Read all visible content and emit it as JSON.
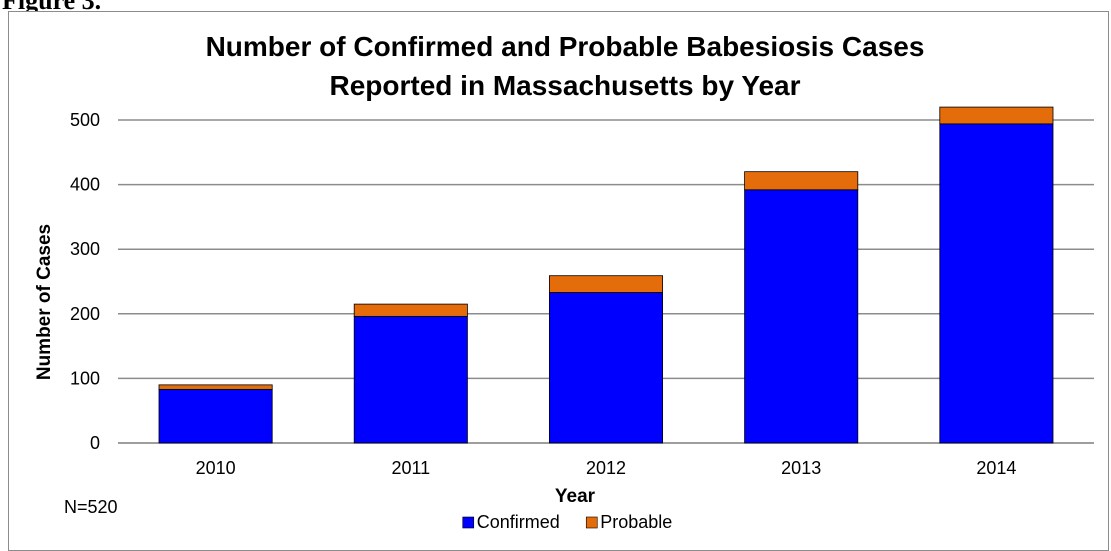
{
  "figure_label": "Figure 3.",
  "chart_data": {
    "type": "bar",
    "stacked": true,
    "title_lines": [
      "Number of Confirmed and Probable Babesiosis Cases",
      "Reported in Massachusetts by Year"
    ],
    "xlabel": "Year",
    "ylabel": "Number of Cases",
    "categories": [
      "2010",
      "2011",
      "2012",
      "2013",
      "2014"
    ],
    "series": [
      {
        "name": "Confirmed",
        "color": "#0000ff",
        "values": [
          83,
          196,
          233,
          392,
          494
        ]
      },
      {
        "name": "Probable",
        "color": "#e46c0a",
        "values": [
          7,
          19,
          26,
          28,
          26
        ]
      }
    ],
    "ylim": [
      0,
      500
    ],
    "yticks": [
      0,
      100,
      200,
      300,
      400,
      500
    ],
    "grid": true,
    "legend_position": "bottom",
    "annotation": "N=520"
  }
}
